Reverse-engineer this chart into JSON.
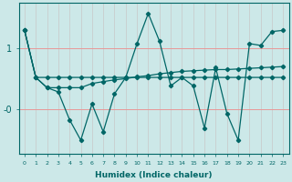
{
  "xlabel": "Humidex (Indice chaleur)",
  "background_color": "#cce8e8",
  "grid_color_h": "#e89898",
  "grid_color_v": "#c8c8c8",
  "line_color": "#006666",
  "xlim": [
    -0.5,
    23.5
  ],
  "ylim": [
    -0.75,
    1.75
  ],
  "ytick_positions": [
    1.0,
    0.0
  ],
  "ytick_labels": [
    "1",
    "-0"
  ],
  "xticks": [
    0,
    1,
    2,
    3,
    4,
    5,
    6,
    7,
    8,
    9,
    10,
    11,
    12,
    13,
    14,
    15,
    16,
    17,
    18,
    19,
    20,
    21,
    22,
    23
  ],
  "series": [
    [
      1.3,
      0.52,
      0.52,
      0.52,
      0.52,
      0.52,
      0.52,
      0.52,
      0.52,
      0.52,
      0.52,
      0.52,
      0.52,
      0.52,
      0.52,
      0.52,
      0.52,
      0.52,
      0.52,
      0.52,
      0.52,
      0.52,
      0.52,
      0.52
    ],
    [
      1.3,
      0.52,
      0.35,
      0.35,
      0.35,
      0.35,
      0.42,
      0.45,
      0.48,
      0.5,
      0.53,
      0.55,
      0.58,
      0.6,
      0.62,
      0.63,
      0.64,
      0.65,
      0.65,
      0.66,
      0.67,
      0.68,
      0.69,
      0.7
    ],
    [
      1.3,
      0.52,
      0.35,
      0.28,
      -0.18,
      -0.52,
      0.08,
      -0.38,
      0.25,
      0.52,
      1.08,
      1.58,
      1.12,
      0.38,
      0.52,
      0.38,
      -0.32,
      0.68,
      -0.08,
      -0.52,
      1.08,
      1.05,
      1.28,
      1.3
    ]
  ]
}
